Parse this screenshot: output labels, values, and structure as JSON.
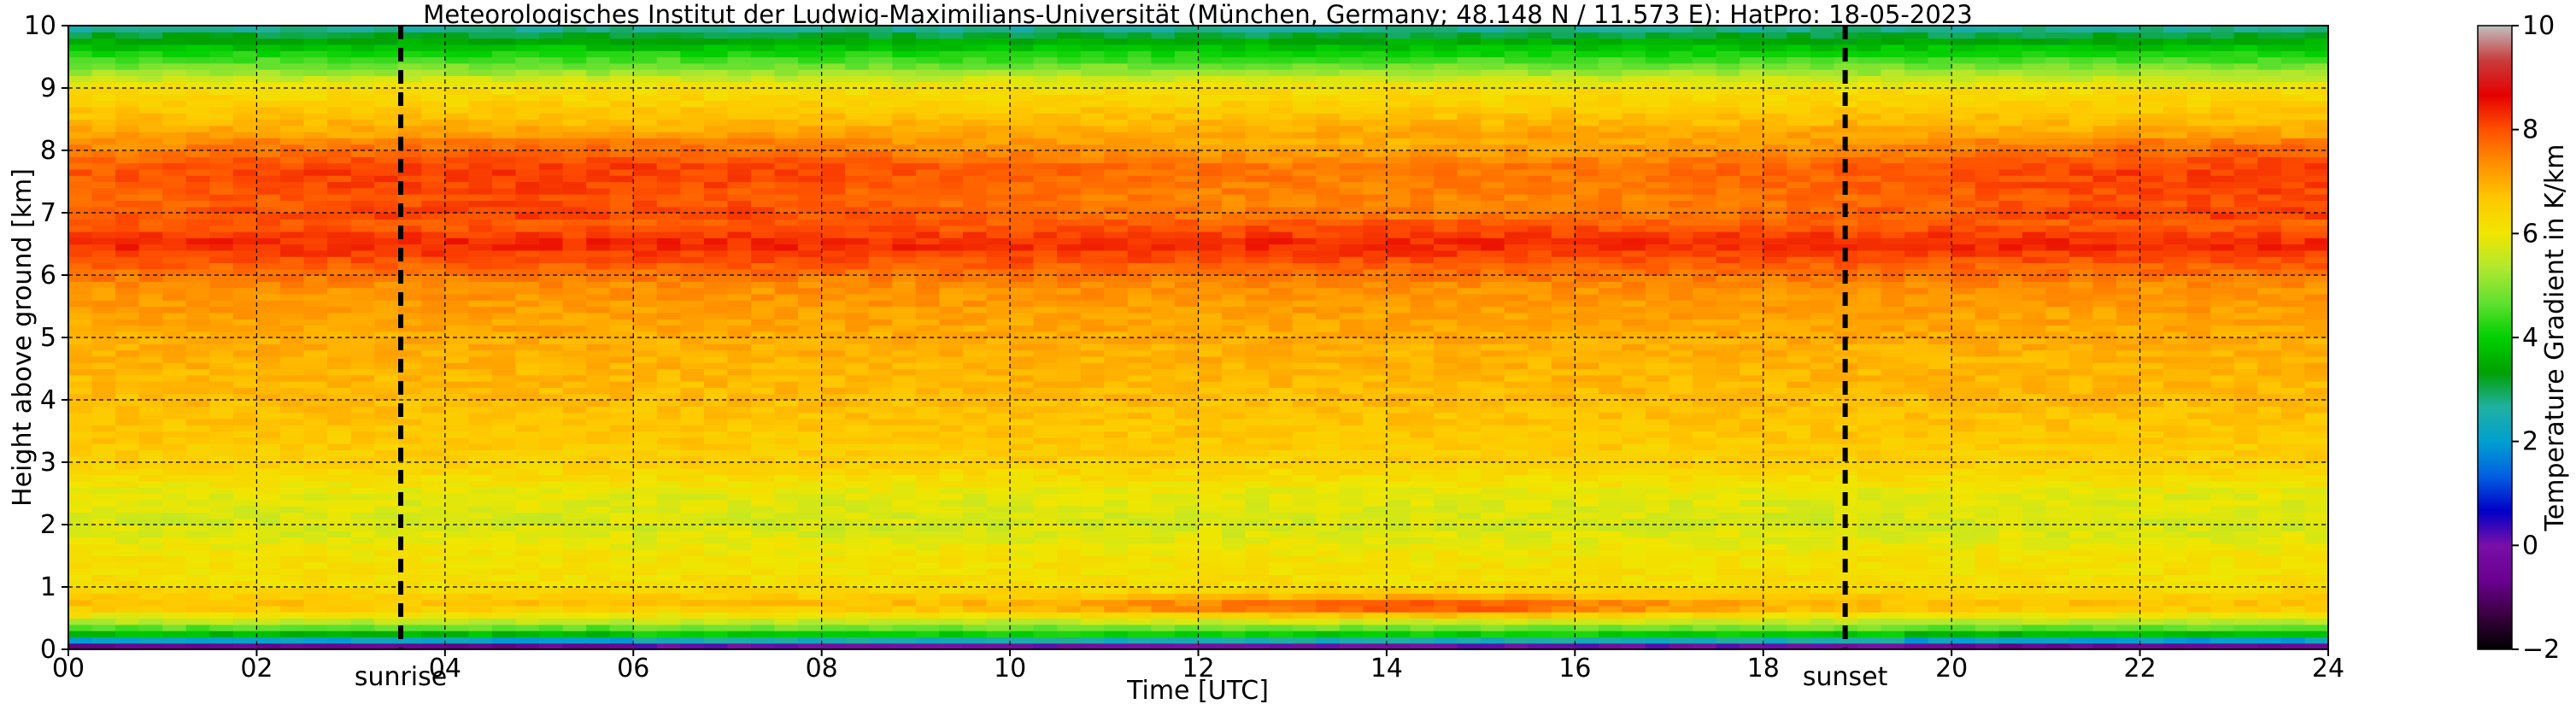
{
  "chart_data": {
    "type": "heatmap",
    "title": "Meteorologisches Institut der Ludwig-Maximilians-Universität (München, Germany; 48.148 N / 11.573 E):    HatPro: 18-05-2023",
    "xlabel": "Time [UTC]",
    "ylabel": "Height above ground [km]",
    "xlim": [
      0,
      24
    ],
    "ylim": [
      0,
      10
    ],
    "x_ticks": [
      "00",
      "02",
      "04",
      "06",
      "08",
      "10",
      "12",
      "14",
      "16",
      "18",
      "20",
      "22",
      "24"
    ],
    "y_ticks": [
      "0",
      "1",
      "2",
      "3",
      "4",
      "5",
      "6",
      "7",
      "8",
      "9",
      "10"
    ],
    "grid": true,
    "colorbar": {
      "label": "Temperature Gradient in K/km",
      "range": [
        -2,
        10
      ],
      "ticks": [
        "−2",
        "0",
        "2",
        "4",
        "6",
        "8",
        "10"
      ]
    },
    "events": [
      {
        "label": "sunrise",
        "time": 3.53
      },
      {
        "label": "sunset",
        "time": 18.87
      }
    ],
    "vertical_profile_km_vs_gradient": {
      "height_km": [
        0.0,
        0.1,
        0.2,
        0.3,
        0.45,
        0.7,
        1.0,
        1.5,
        2.0,
        2.5,
        3.0,
        4.0,
        5.0,
        5.8,
        6.2,
        6.5,
        6.8,
        7.2,
        7.7,
        8.1,
        8.5,
        9.0,
        9.3,
        9.6,
        9.8,
        10.0
      ],
      "gradient_K_per_km": [
        -1.5,
        1.5,
        3.5,
        4.5,
        5.5,
        6.8,
        6.2,
        6.1,
        5.7,
        5.9,
        6.5,
        6.8,
        7.0,
        7.3,
        7.9,
        8.4,
        7.9,
        7.7,
        7.9,
        7.3,
        6.8,
        6.2,
        5.0,
        4.0,
        3.3,
        2.5
      ]
    },
    "colors": {
      "scale": [
        "#000000",
        "#3a0040",
        "#6a0090",
        "#7a0fa8",
        "#0000c8",
        "#0060e0",
        "#00a0d0",
        "#20b0a0",
        "#00a000",
        "#00d000",
        "#60e030",
        "#b0e830",
        "#f0e600",
        "#ffc800",
        "#ff9000",
        "#ff5000",
        "#e60000",
        "#c83c3c",
        "#c0c0c0"
      ],
      "event_line": "#000000",
      "grid": "#000000"
    }
  }
}
